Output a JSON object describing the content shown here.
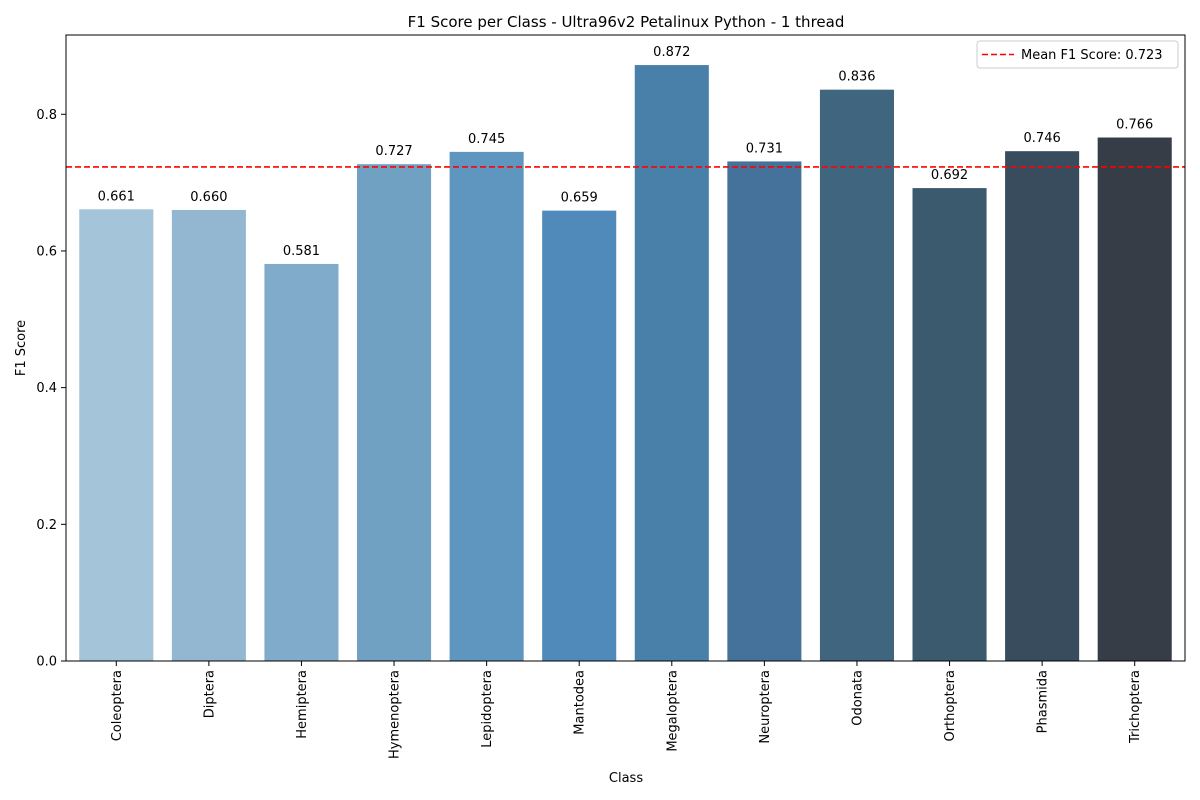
{
  "chart_data": {
    "type": "bar",
    "title": "F1 Score per Class - Ultra96v2 Petalinux Python - 1 thread",
    "xlabel": "Class",
    "ylabel": "F1 Score",
    "ylim": [
      0,
      0.916
    ],
    "yticks": [
      0.0,
      0.2,
      0.4,
      0.6,
      0.8
    ],
    "ytick_labels": [
      "0.0",
      "0.2",
      "0.4",
      "0.6",
      "0.8"
    ],
    "categories": [
      "Coleoptera",
      "Diptera",
      "Hemiptera",
      "Hymenoptera",
      "Lepidoptera",
      "Mantodea",
      "Megaloptera",
      "Neuroptera",
      "Odonata",
      "Orthoptera",
      "Phasmida",
      "Trichoptera"
    ],
    "values": [
      0.661,
      0.66,
      0.581,
      0.727,
      0.745,
      0.659,
      0.872,
      0.731,
      0.836,
      0.692,
      0.746,
      0.766
    ],
    "value_labels": [
      "0.661",
      "0.660",
      "0.581",
      "0.727",
      "0.745",
      "0.659",
      "0.872",
      "0.731",
      "0.836",
      "0.692",
      "0.746",
      "0.766"
    ],
    "colors": [
      "#a3c4d9",
      "#93b7d1",
      "#80abca",
      "#70a1c2",
      "#5f96bf",
      "#508abb",
      "#4880aa",
      "#45729b",
      "#40657f",
      "#3c5a6e",
      "#394c5d",
      "#363d47"
    ],
    "grid": false,
    "mean_line": {
      "value": 0.723,
      "label": "Mean F1 Score: 0.723",
      "color": "#ff0000",
      "style": "dashed"
    },
    "legend": {
      "position": "top-right",
      "entries": [
        "Mean F1 Score: 0.723"
      ]
    }
  }
}
